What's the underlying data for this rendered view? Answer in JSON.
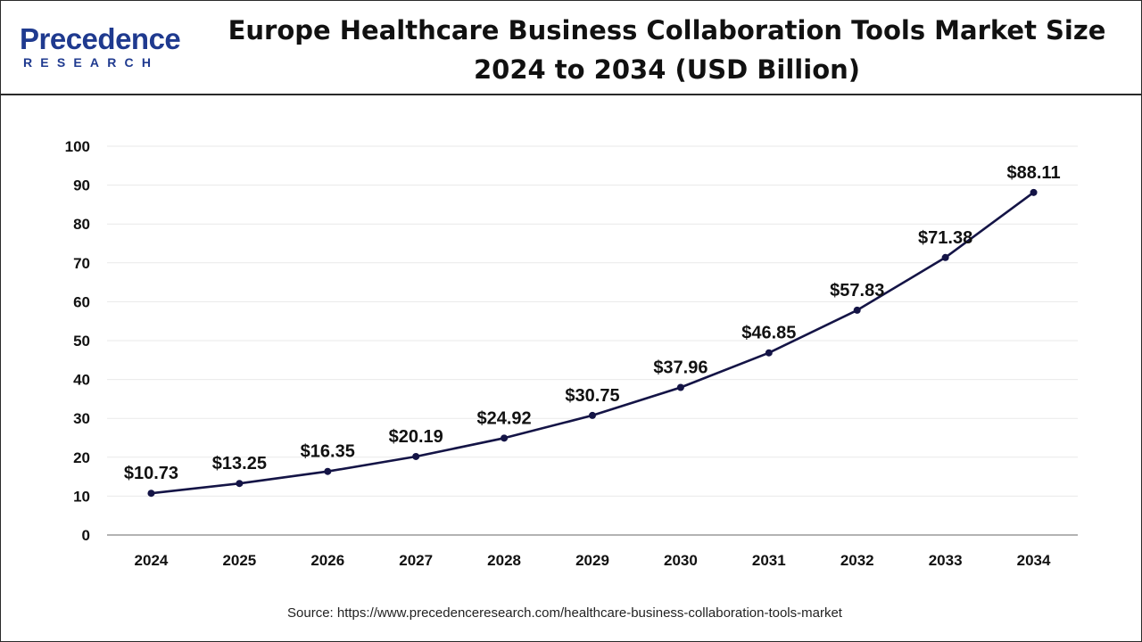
{
  "header": {
    "logo_word": "Precedence",
    "logo_sub": "RESEARCH",
    "title_line1": "Europe Healthcare Business Collaboration Tools Market Size",
    "title_line2": "2024 to 2034 (USD Billion)"
  },
  "source": "Source: https://www.precedenceresearch.com/healthcare-business-collaboration-tools-market",
  "colors": {
    "line": "#141446",
    "grid": "#e9e9e9",
    "axis": "#9a9a9a",
    "brand": "#1f3a8f",
    "brand_accent": "#3aa0e0"
  },
  "chart_data": {
    "type": "line",
    "title": "Europe Healthcare Business Collaboration Tools Market Size 2024 to 2034 (USD Billion)",
    "xlabel": "",
    "ylabel": "",
    "categories": [
      "2024",
      "2025",
      "2026",
      "2027",
      "2028",
      "2029",
      "2030",
      "2031",
      "2032",
      "2033",
      "2034"
    ],
    "values": [
      10.73,
      13.25,
      16.35,
      20.19,
      24.92,
      30.75,
      37.96,
      46.85,
      57.83,
      71.38,
      88.11
    ],
    "data_labels": [
      "$10.73",
      "$13.25",
      "$16.35",
      "$20.19",
      "$24.92",
      "$30.75",
      "$37.96",
      "$46.85",
      "$57.83",
      "$71.38",
      "$88.11"
    ],
    "ylim": [
      0,
      100
    ],
    "yticks": [
      "0",
      "10",
      "20",
      "30",
      "40",
      "50",
      "60",
      "70",
      "80",
      "90",
      "100"
    ],
    "grid": true,
    "legend": "none"
  }
}
